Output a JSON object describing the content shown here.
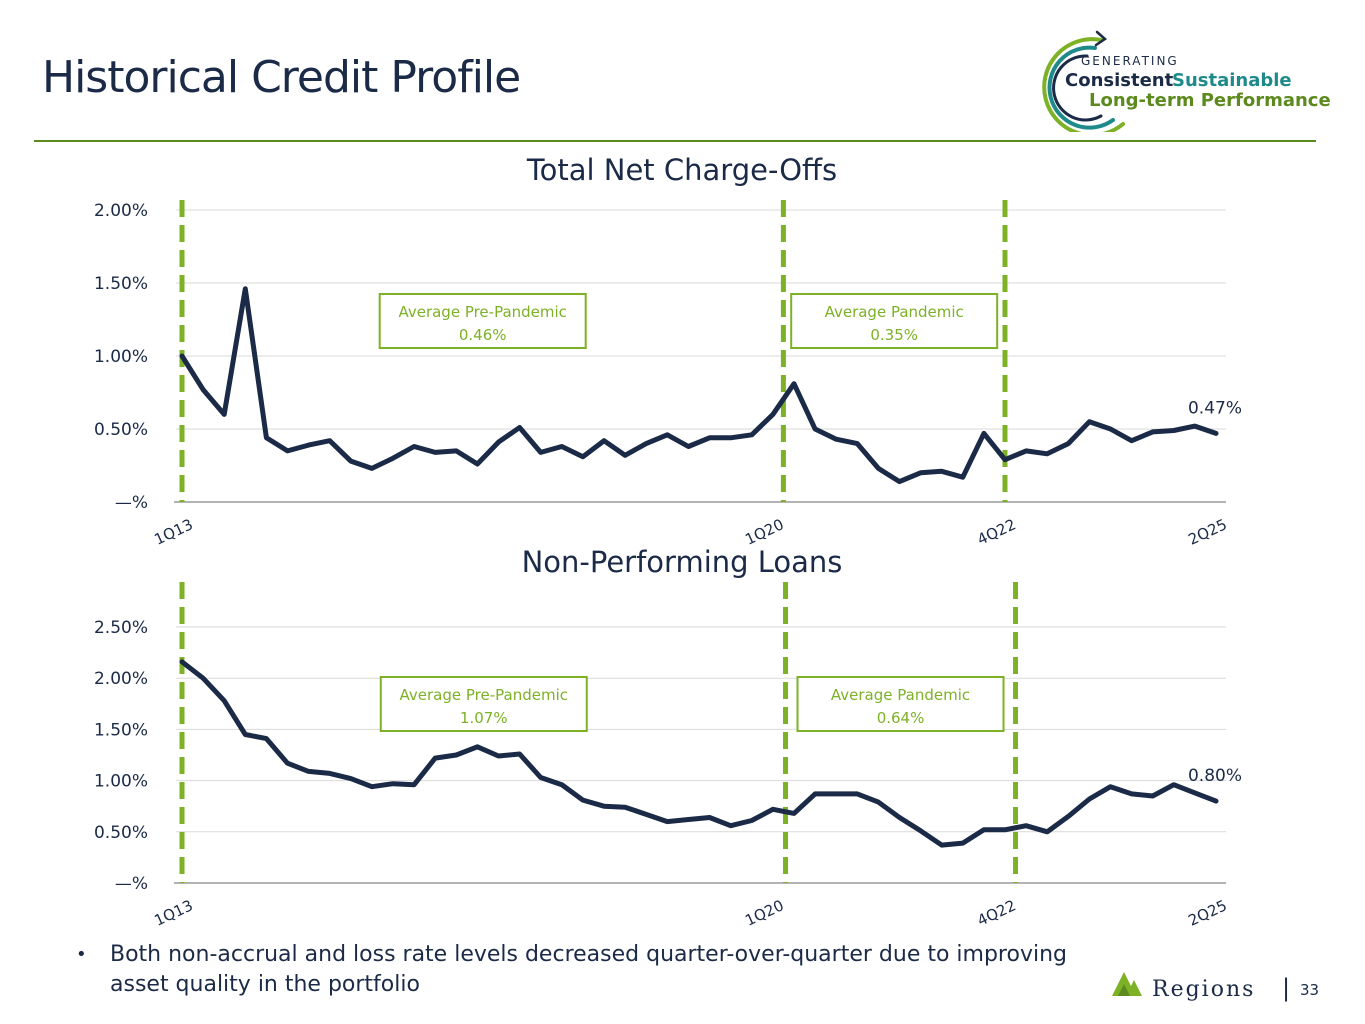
{
  "page": {
    "title": "Historical Credit Profile",
    "page_number": "33"
  },
  "logo": {
    "line1": "GENERATING",
    "line2_a": "Consistent",
    "line2_b": "Sustainable",
    "line3": "Long-term Performance"
  },
  "brand": {
    "name": "Regions",
    "separator": "|"
  },
  "footnote": {
    "bullet": "•",
    "text": "Both non-accrual and loss rate levels decreased quarter-over-quarter due to improving asset quality in the portfolio"
  },
  "colors": {
    "navy": "#1b2a47",
    "green": "#7db126",
    "dark_green": "#5c8a1e",
    "teal": "#1f8a8a",
    "grid": "#d9d9d9"
  },
  "chart_data": [
    {
      "id": "nco",
      "type": "line",
      "title": "Total Net Charge-Offs",
      "y_ticks": [
        {
          "value": 0,
          "label": "—%"
        },
        {
          "value": 0.5,
          "label": "0.50%"
        },
        {
          "value": 1.0,
          "label": "1.00%"
        },
        {
          "value": 1.5,
          "label": "1.50%"
        },
        {
          "value": 2.0,
          "label": "2.00%"
        }
      ],
      "ylim": [
        0,
        2.0
      ],
      "x_labels": [
        {
          "index": 0,
          "label": "1Q13"
        },
        {
          "index": 28,
          "label": "1Q20"
        },
        {
          "index": 39,
          "label": "4Q22"
        },
        {
          "index": 49,
          "label": "2Q25"
        }
      ],
      "markers": [
        {
          "index": 0,
          "label": "1Q13"
        },
        {
          "index": 28.5,
          "label": "1Q20"
        },
        {
          "index": 39,
          "label": "4Q22"
        }
      ],
      "averages": [
        {
          "label": "Average Pre-Pandemic",
          "value": "0.46%",
          "from_index": 0,
          "to_index": 28.5
        },
        {
          "label": "Average Pandemic",
          "value": "0.35%",
          "from_index": 28.5,
          "to_index": 39
        }
      ],
      "end_label": "0.47%",
      "values": [
        1.0,
        0.77,
        0.6,
        1.46,
        0.44,
        0.35,
        0.39,
        0.42,
        0.28,
        0.23,
        0.3,
        0.38,
        0.34,
        0.35,
        0.26,
        0.41,
        0.51,
        0.34,
        0.38,
        0.31,
        0.42,
        0.32,
        0.4,
        0.46,
        0.38,
        0.44,
        0.44,
        0.46,
        0.6,
        0.81,
        0.5,
        0.43,
        0.4,
        0.23,
        0.14,
        0.2,
        0.21,
        0.17,
        0.47,
        0.29,
        0.35,
        0.33,
        0.4,
        0.55,
        0.5,
        0.42,
        0.48,
        0.49,
        0.52,
        0.47
      ]
    },
    {
      "id": "npl",
      "type": "line",
      "title": "Non-Performing Loans",
      "y_ticks": [
        {
          "value": 0,
          "label": "—%"
        },
        {
          "value": 0.5,
          "label": "0.50%"
        },
        {
          "value": 1.0,
          "label": "1.00%"
        },
        {
          "value": 1.5,
          "label": "1.50%"
        },
        {
          "value": 2.0,
          "label": "2.00%"
        },
        {
          "value": 2.5,
          "label": "2.50%"
        }
      ],
      "ylim": [
        0,
        2.5
      ],
      "x_labels": [
        {
          "index": 0,
          "label": "1Q13"
        },
        {
          "index": 28,
          "label": "1Q20"
        },
        {
          "index": 39,
          "label": "4Q22"
        },
        {
          "index": 49,
          "label": "2Q25"
        }
      ],
      "markers": [
        {
          "index": 0,
          "label": "1Q13"
        },
        {
          "index": 28.6,
          "label": "1Q20"
        },
        {
          "index": 39.5,
          "label": "4Q22"
        }
      ],
      "averages": [
        {
          "label": "Average Pre-Pandemic",
          "value": "1.07%",
          "from_index": 0,
          "to_index": 28.6
        },
        {
          "label": "Average Pandemic",
          "value": "0.64%",
          "from_index": 28.6,
          "to_index": 39.5
        }
      ],
      "end_label": "0.80%",
      "values": [
        2.16,
        2.0,
        1.78,
        1.45,
        1.41,
        1.17,
        1.09,
        1.07,
        1.02,
        0.94,
        0.97,
        0.96,
        1.22,
        1.25,
        1.33,
        1.24,
        1.26,
        1.03,
        0.96,
        0.81,
        0.75,
        0.74,
        0.67,
        0.6,
        0.62,
        0.64,
        0.56,
        0.61,
        0.72,
        0.68,
        0.87,
        0.87,
        0.87,
        0.79,
        0.64,
        0.51,
        0.37,
        0.39,
        0.52,
        0.52,
        0.56,
        0.5,
        0.65,
        0.82,
        0.94,
        0.87,
        0.85,
        0.96,
        0.88,
        0.8
      ]
    }
  ]
}
